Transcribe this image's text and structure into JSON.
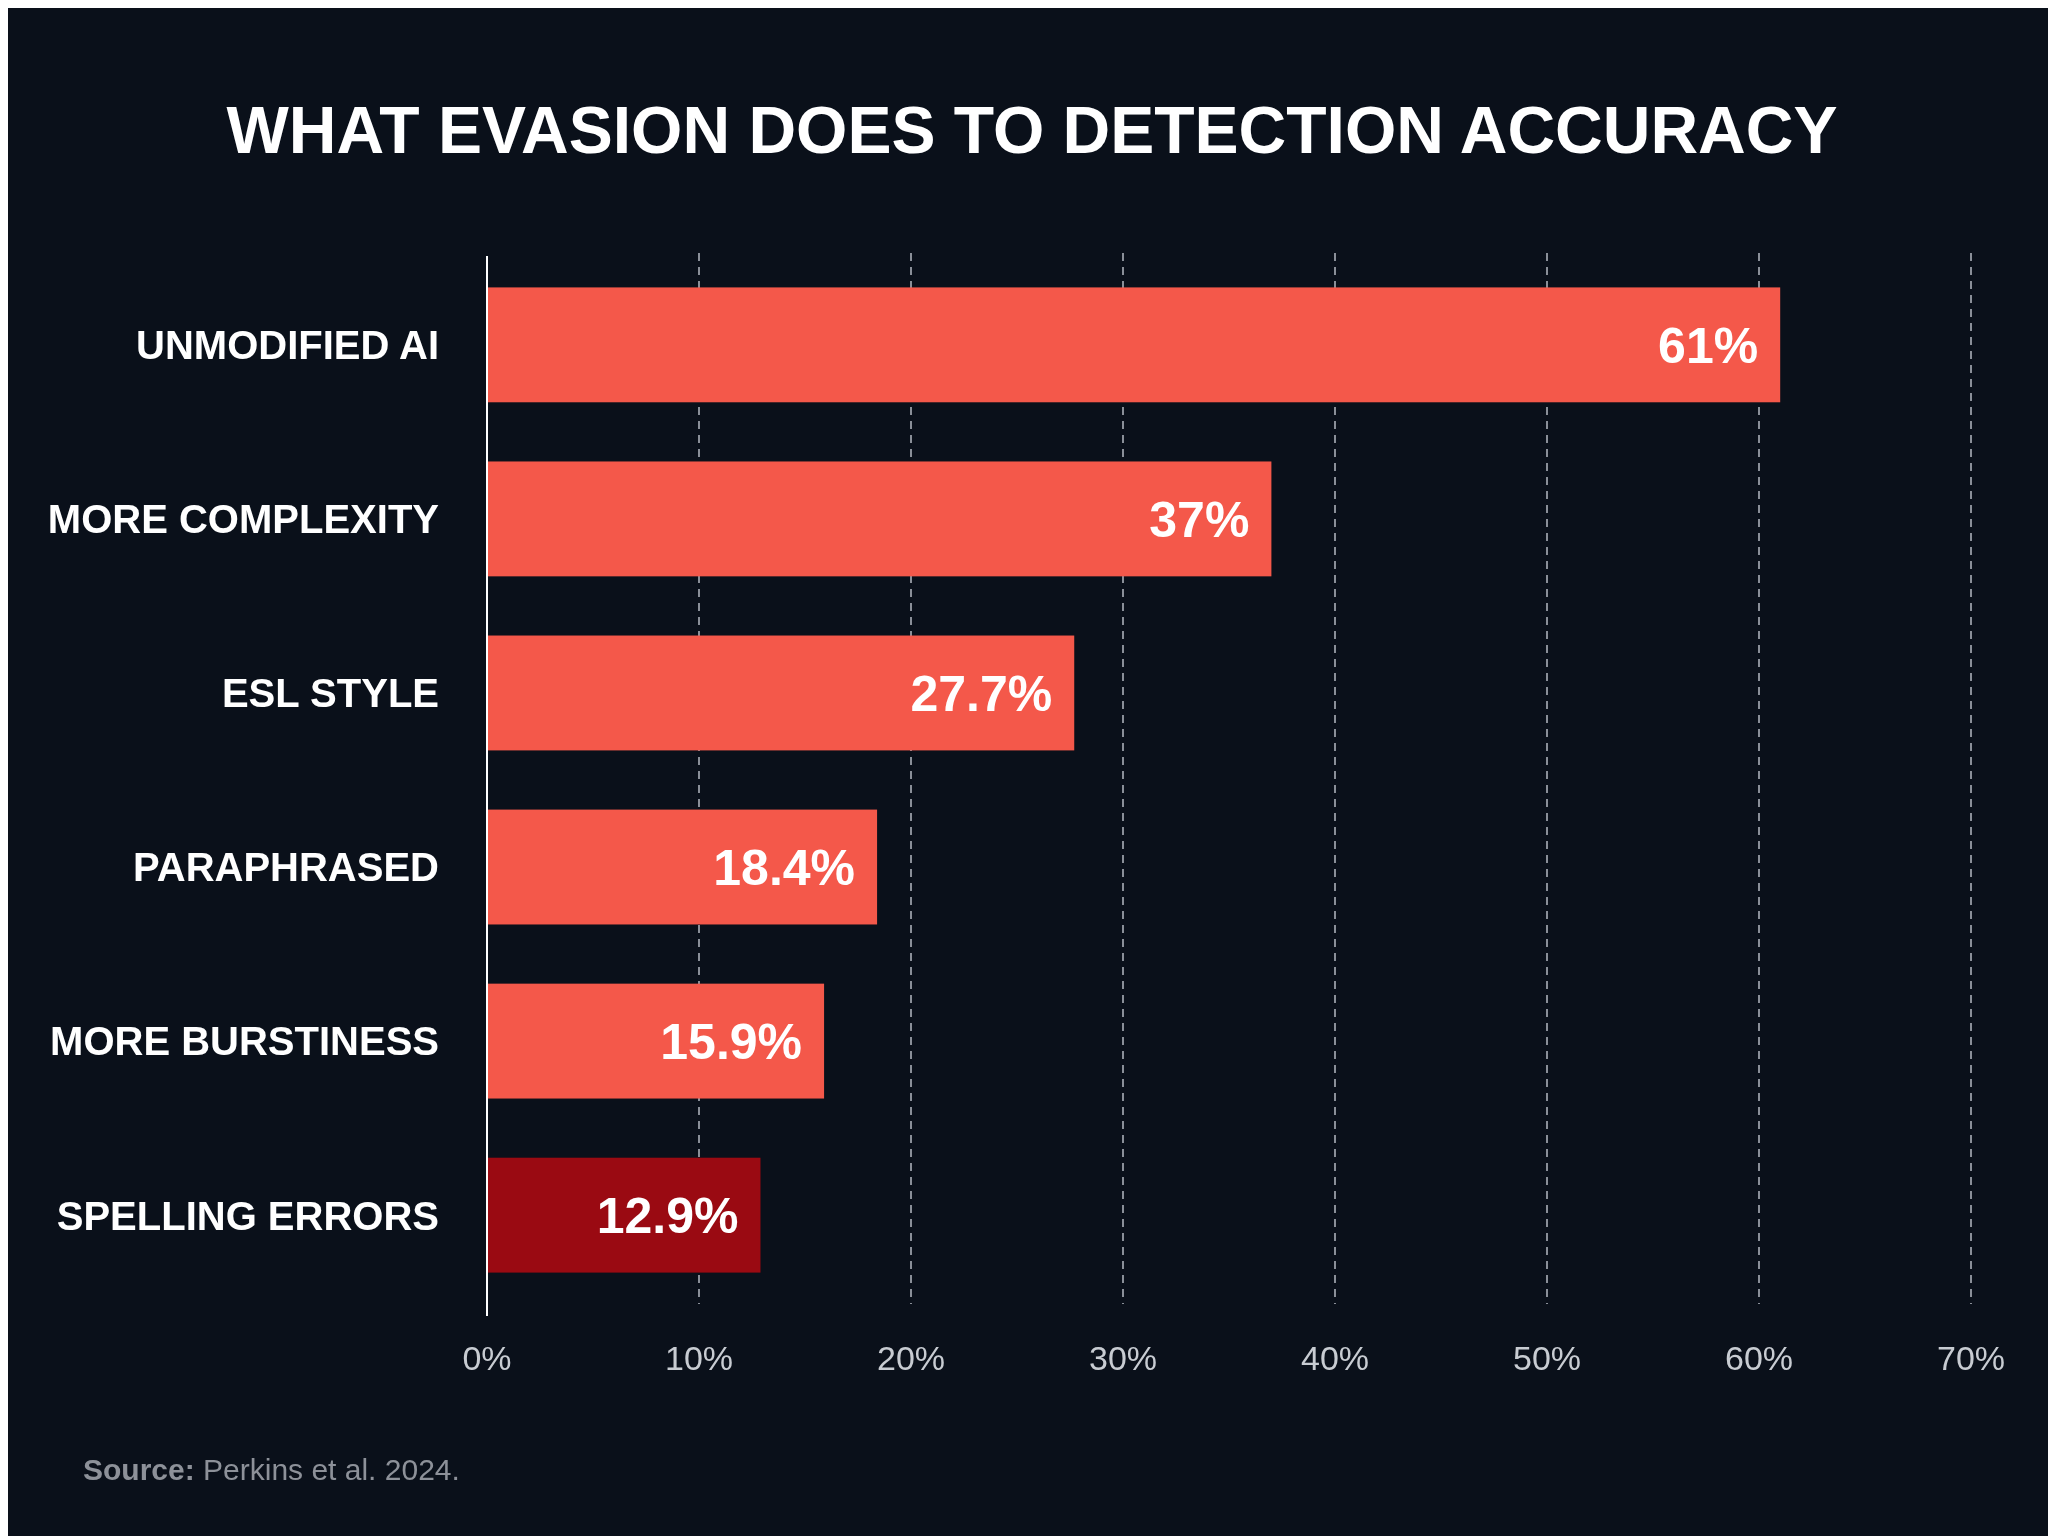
{
  "chart_data": {
    "type": "bar",
    "orientation": "horizontal",
    "title": "WHAT EVASION DOES TO DETECTION ACCURACY",
    "categories": [
      "UNMODIFIED AI",
      "MORE COMPLEXITY",
      "ESL STYLE",
      "PARAPHRASED",
      "MORE BURSTINESS",
      "SPELLING ERRORS"
    ],
    "values": [
      61,
      37,
      27.7,
      18.4,
      15.9,
      12.9
    ],
    "colors": [
      "#f4584a",
      "#f4584a",
      "#f4584a",
      "#f4584a",
      "#f4584a",
      "#9a0a12"
    ],
    "value_labels": [
      "61%",
      "37%",
      "27.7%",
      "18.4%",
      "15.9%",
      "12.9%"
    ],
    "xlim": [
      0,
      70
    ],
    "xticks": [
      {
        "value": 0,
        "label": "0%"
      },
      {
        "value": 10,
        "label": "10%"
      },
      {
        "value": 20,
        "label": "20%"
      },
      {
        "value": 30,
        "label": "30%"
      },
      {
        "value": 40,
        "label": "40%"
      },
      {
        "value": 50,
        "label": "50%"
      },
      {
        "value": 60,
        "label": "60%"
      },
      {
        "value": 70,
        "label": "70%"
      }
    ],
    "grid": "x",
    "annotations": [
      "Source: Perkins et al. 2024."
    ]
  }
}
